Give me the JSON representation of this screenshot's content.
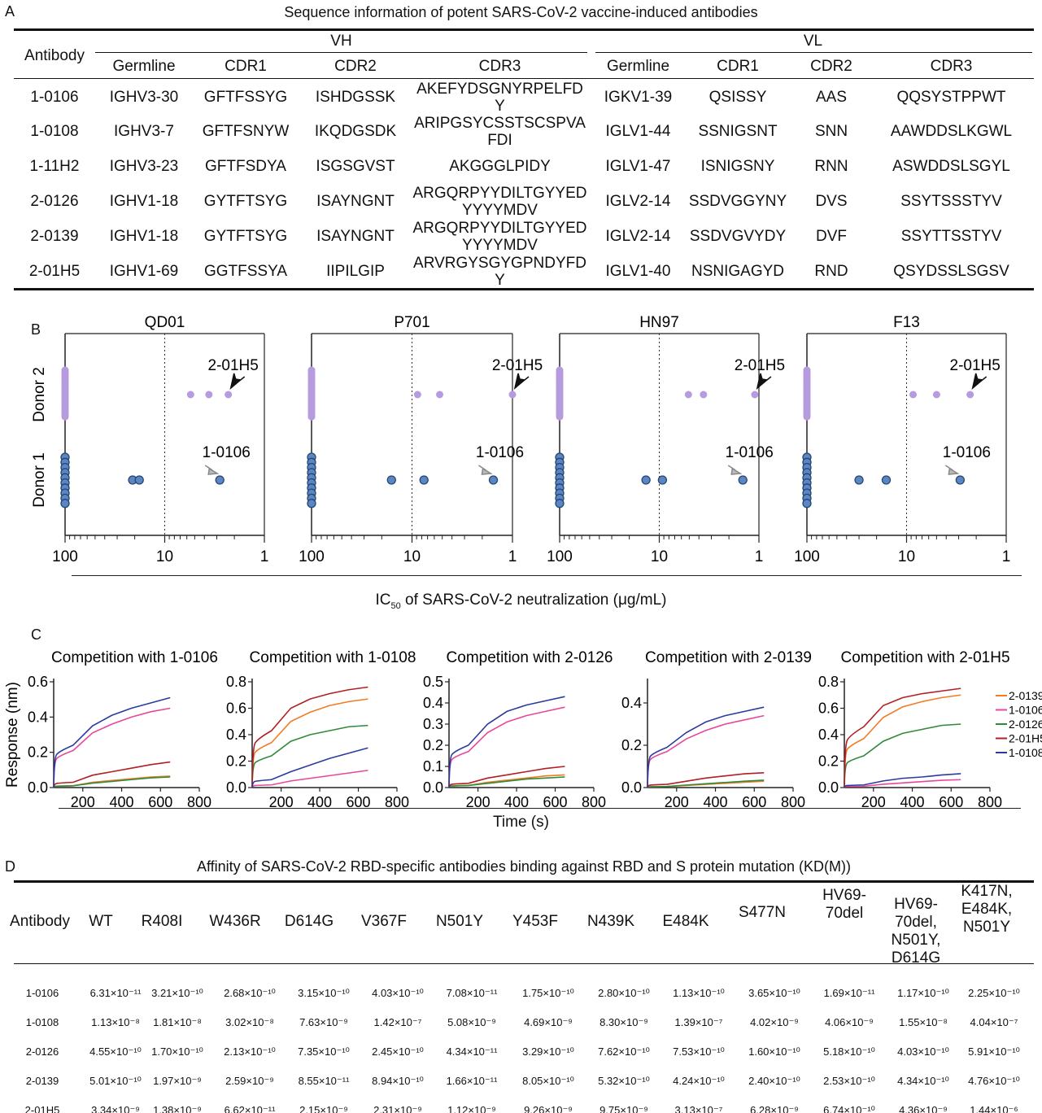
{
  "panelA": {
    "label": "A",
    "title": "Sequence information of potent SARS-CoV-2 vaccine-induced antibodies",
    "antibody_header": "Antibody",
    "group_vh": "VH",
    "group_vl": "VL",
    "sub_headers": [
      "Germline",
      "CDR1",
      "CDR2",
      "CDR3",
      "Germline",
      "CDR1",
      "CDR2",
      "CDR3"
    ],
    "rows": [
      [
        "1-0106",
        "IGHV3-30",
        "GFTFSSYG",
        "ISHDGSSK",
        "AKEFYDSGNYRPELFDY",
        "IGKV1-39",
        "QSISSY",
        "AAS",
        "QQSYSTPPWT"
      ],
      [
        "1-0108",
        "IGHV3-7",
        "GFTFSNYW",
        "IKQDGSDK",
        "ARIPGSYCSSTSCSPVAFDI",
        "IGLV1-44",
        "SSNIGSNT",
        "SNN",
        "AAWDDSLKGWL"
      ],
      [
        "1-11H2",
        "IGHV3-23",
        "GFTFSDYA",
        "ISGSGVST",
        "AKGGGLPIDY",
        "IGLV1-47",
        "ISNIGSNY",
        "RNN",
        "ASWDDSLSGYL"
      ],
      [
        "2-0126",
        "IGHV1-18",
        "GYTFTSYG",
        "ISAYNGNT",
        "ARGQRPYYDILTGYYEDYYYYMDV",
        "IGLV2-14",
        "SSDVGGYNY",
        "DVS",
        "SSYTSSSTYV"
      ],
      [
        "2-0139",
        "IGHV1-18",
        "GYTFTSYG",
        "ISAYNGNT",
        "ARGQRPYYDILTGYYEDYYYYMDV",
        "IGLV2-14",
        "SSDVGVYDY",
        "DVF",
        "SSYTTSSTYV"
      ],
      [
        "2-01H5",
        "IGHV1-69",
        "GGTFSSYA",
        "IIPILGIP",
        "ARVRGYSGYGPNDYFDY",
        "IGLV1-40",
        "NSNIGAGYD",
        "RND",
        "QSYDSSLSGSV"
      ]
    ]
  },
  "panelB": {
    "label": "B",
    "y_categories": [
      "Donor 2",
      "Donor 1"
    ],
    "xlabel_main": "IC",
    "xlabel_sub": "50",
    "xlabel_rest": " of SARS-CoV-2 neutralization (μg/mL)",
    "tick_labels": [
      "100",
      "10",
      "1"
    ],
    "donor2_color": "#b69be0",
    "donor1_color": "#5a86c4",
    "arrow2_color": "#111111",
    "arrow1_color": "#888888",
    "plots": [
      {
        "title": "QD01",
        "donor2_label": "2-01H5",
        "donor1_label": "1-0106"
      },
      {
        "title": "P701",
        "donor2_label": "2-01H5",
        "donor1_label": "1-0106"
      },
      {
        "title": "HN97",
        "donor2_label": "2-01H5",
        "donor1_label": "1-0106"
      },
      {
        "title": "F13",
        "donor2_label": "2-01H5",
        "donor1_label": "1-0106"
      }
    ]
  },
  "chart_data": [
    {
      "type": "scatter",
      "title": "QD01",
      "x_scale": "log",
      "x_reversed": true,
      "xlim": [
        100,
        1
      ],
      "threshold_line": 10,
      "series": [
        {
          "name": "Donor 2",
          "non_neutralizing_count": 9,
          "x": [
            5.5,
            3.6,
            2.3
          ]
        },
        {
          "name": "Donor 1",
          "non_neutralizing_count": 10,
          "x": [
            21,
            18,
            2.8
          ]
        }
      ]
    },
    {
      "type": "scatter",
      "title": "P701",
      "x_scale": "log",
      "x_reversed": true,
      "xlim": [
        100,
        1
      ],
      "threshold_line": 10,
      "series": [
        {
          "name": "Donor 2",
          "non_neutralizing_count": 9,
          "x": [
            8.8,
            5.3,
            1.0
          ]
        },
        {
          "name": "Donor 1",
          "non_neutralizing_count": 10,
          "x": [
            16,
            7.6,
            1.55
          ]
        }
      ]
    },
    {
      "type": "scatter",
      "title": "HN97",
      "x_scale": "log",
      "x_reversed": true,
      "xlim": [
        100,
        1
      ],
      "threshold_line": 10,
      "series": [
        {
          "name": "Donor 2",
          "non_neutralizing_count": 9,
          "x": [
            5.1,
            3.6,
            1.1
          ]
        },
        {
          "name": "Donor 1",
          "non_neutralizing_count": 10,
          "x": [
            13.6,
            9.3,
            1.45
          ]
        }
      ]
    },
    {
      "type": "scatter",
      "title": "F13",
      "x_scale": "log",
      "x_reversed": true,
      "xlim": [
        100,
        1
      ],
      "threshold_line": 10,
      "series": [
        {
          "name": "Donor 2",
          "non_neutralizing_count": 9,
          "x": [
            8.6,
            5.0,
            2.3
          ]
        },
        {
          "name": "Donor 1",
          "non_neutralizing_count": 10,
          "x": [
            30,
            16,
            2.9
          ]
        }
      ]
    },
    {
      "type": "line",
      "title": "Competition with 1-0106",
      "ylim": [
        0,
        0.6
      ],
      "yticks": [
        0.0,
        0.2,
        0.4,
        0.6
      ],
      "xlim": [
        50,
        800
      ],
      "series": [
        {
          "name": "2-0139",
          "values": [
            0,
            0.01,
            0.03,
            0.04,
            0.05,
            0.06,
            0.065
          ]
        },
        {
          "name": "1-0106",
          "values": [
            0,
            0.21,
            0.31,
            0.36,
            0.4,
            0.43,
            0.45
          ]
        },
        {
          "name": "2-0126",
          "values": [
            0,
            0.01,
            0.025,
            0.035,
            0.045,
            0.055,
            0.06
          ]
        },
        {
          "name": "2-01H5",
          "values": [
            0,
            0.03,
            0.07,
            0.09,
            0.11,
            0.13,
            0.145
          ]
        },
        {
          "name": "1-0108",
          "values": [
            0,
            0.24,
            0.35,
            0.41,
            0.45,
            0.48,
            0.51
          ]
        }
      ]
    },
    {
      "type": "line",
      "title": "Competition with 1-0108",
      "ylim": [
        0,
        0.8
      ],
      "yticks": [
        0.0,
        0.2,
        0.4,
        0.6,
        0.8
      ],
      "xlim": [
        50,
        800
      ],
      "series": [
        {
          "name": "2-0139",
          "values": [
            0,
            0.34,
            0.5,
            0.57,
            0.62,
            0.65,
            0.67
          ]
        },
        {
          "name": "1-0106",
          "values": [
            0,
            0.02,
            0.05,
            0.07,
            0.09,
            0.11,
            0.13
          ]
        },
        {
          "name": "2-0126",
          "values": [
            0,
            0.24,
            0.35,
            0.4,
            0.43,
            0.46,
            0.47
          ]
        },
        {
          "name": "2-01H5",
          "values": [
            0,
            0.43,
            0.6,
            0.67,
            0.71,
            0.74,
            0.76
          ]
        },
        {
          "name": "1-0108",
          "values": [
            0,
            0.06,
            0.12,
            0.17,
            0.22,
            0.26,
            0.3
          ]
        }
      ]
    },
    {
      "type": "line",
      "title": "Competition with 2-0126",
      "ylim": [
        0,
        0.5
      ],
      "yticks": [
        0.0,
        0.1,
        0.2,
        0.3,
        0.4,
        0.5
      ],
      "xlim": [
        50,
        800
      ],
      "series": [
        {
          "name": "2-0139",
          "values": [
            0,
            0.01,
            0.025,
            0.035,
            0.045,
            0.055,
            0.06
          ]
        },
        {
          "name": "1-0106",
          "values": [
            0,
            0.17,
            0.26,
            0.31,
            0.34,
            0.36,
            0.38
          ]
        },
        {
          "name": "2-0126",
          "values": [
            0,
            0.01,
            0.02,
            0.03,
            0.04,
            0.045,
            0.05
          ]
        },
        {
          "name": "2-01H5",
          "values": [
            0,
            0.02,
            0.045,
            0.06,
            0.075,
            0.09,
            0.1
          ]
        },
        {
          "name": "1-0108",
          "values": [
            0,
            0.2,
            0.3,
            0.36,
            0.39,
            0.41,
            0.43
          ]
        }
      ]
    },
    {
      "type": "line",
      "title": "Competition with 2-0139",
      "ylim": [
        0,
        0.5
      ],
      "yticks": [
        0.0,
        0.2,
        0.4
      ],
      "xlim": [
        50,
        800
      ],
      "series": [
        {
          "name": "2-0139",
          "values": [
            0,
            0.005,
            0.01,
            0.015,
            0.02,
            0.025,
            0.03
          ]
        },
        {
          "name": "1-0106",
          "values": [
            0,
            0.17,
            0.23,
            0.27,
            0.3,
            0.32,
            0.34
          ]
        },
        {
          "name": "2-0126",
          "values": [
            0,
            0.005,
            0.012,
            0.018,
            0.024,
            0.03,
            0.035
          ]
        },
        {
          "name": "2-01H5",
          "values": [
            0,
            0.015,
            0.03,
            0.045,
            0.055,
            0.065,
            0.07
          ]
        },
        {
          "name": "1-0108",
          "values": [
            0,
            0.19,
            0.26,
            0.31,
            0.34,
            0.36,
            0.38
          ]
        }
      ]
    },
    {
      "type": "line",
      "title": "Competition with 2-01H5",
      "ylim": [
        0,
        0.8
      ],
      "yticks": [
        0.0,
        0.2,
        0.4,
        0.6,
        0.8
      ],
      "xlim": [
        50,
        800
      ],
      "series": [
        {
          "name": "2-0139",
          "values": [
            0,
            0.37,
            0.53,
            0.61,
            0.65,
            0.68,
            0.7
          ]
        },
        {
          "name": "1-0106",
          "values": [
            0,
            0.01,
            0.025,
            0.035,
            0.045,
            0.055,
            0.06
          ]
        },
        {
          "name": "2-0126",
          "values": [
            0,
            0.24,
            0.35,
            0.41,
            0.44,
            0.47,
            0.48
          ]
        },
        {
          "name": "2-01H5",
          "values": [
            0,
            0.46,
            0.62,
            0.68,
            0.71,
            0.73,
            0.75
          ]
        },
        {
          "name": "1-0108",
          "values": [
            0,
            0.02,
            0.05,
            0.07,
            0.08,
            0.095,
            0.105
          ]
        }
      ]
    }
  ],
  "panelC": {
    "label": "C",
    "ylabel": "Response (nm)",
    "xlabel": "Time (s)",
    "x_time_points": [
      50,
      150,
      250,
      350,
      450,
      550,
      650
    ],
    "xticks": [
      200,
      400,
      600,
      800
    ],
    "legend": [
      "2-0139",
      "1-0106",
      "2-0126",
      "2-01H5",
      "1-0108"
    ],
    "colors": {
      "2-0139": "#f07c24",
      "1-0106": "#e8479a",
      "2-0126": "#2f8a3a",
      "2-01H5": "#b21f24",
      "1-0108": "#2b3a9e"
    }
  },
  "panelD": {
    "label": "D",
    "title": "Affinity of SARS-CoV-2 RBD-specific antibodies binding against RBD and S protein mutation (KD(M))",
    "headers": [
      "Antibody",
      "WT",
      "R408I",
      "W436R",
      "D614G",
      "V367F",
      "N501Y",
      "Y453F",
      "N439K",
      "E484K",
      "S477N",
      "HV69-70del",
      "HV69-70del, N501Y, D614G",
      "K417N, E484K, N501Y"
    ],
    "rows": [
      [
        "1-0106",
        "6.31×10⁻¹¹",
        "3.21×10⁻¹⁰",
        "2.68×10⁻¹⁰",
        "3.15×10⁻¹⁰",
        "4.03×10⁻¹⁰",
        "7.08×10⁻¹¹",
        "1.75×10⁻¹⁰",
        "2.80×10⁻¹⁰",
        "1.13×10⁻¹⁰",
        "3.65×10⁻¹⁰",
        "1.69×10⁻¹¹",
        "1.17×10⁻¹⁰",
        "2.25×10⁻¹⁰"
      ],
      [
        "1-0108",
        "1.13×10⁻⁸",
        "1.81×10⁻⁸",
        "3.02×10⁻⁸",
        "7.63×10⁻⁹",
        "1.42×10⁻⁷",
        "5.08×10⁻⁹",
        "4.69×10⁻⁹",
        "8.30×10⁻⁹",
        "1.39×10⁻⁷",
        "4.02×10⁻⁹",
        "4.06×10⁻⁹",
        "1.55×10⁻⁸",
        "4.04×10⁻⁷"
      ],
      [
        "2-0126",
        "4.55×10⁻¹⁰",
        "1.70×10⁻¹⁰",
        "2.13×10⁻¹⁰",
        "7.35×10⁻¹⁰",
        "2.45×10⁻¹⁰",
        "4.34×10⁻¹¹",
        "3.29×10⁻¹⁰",
        "7.62×10⁻¹⁰",
        "7.53×10⁻¹⁰",
        "1.60×10⁻¹⁰",
        "5.18×10⁻¹⁰",
        "4.03×10⁻¹⁰",
        "5.91×10⁻¹⁰"
      ],
      [
        "2-0139",
        "5.01×10⁻¹⁰",
        "1.97×10⁻⁹",
        "2.59×10⁻⁹",
        "8.55×10⁻¹¹",
        "8.94×10⁻¹⁰",
        "1.66×10⁻¹¹",
        "8.05×10⁻¹⁰",
        "5.32×10⁻¹⁰",
        "4.24×10⁻¹⁰",
        "2.40×10⁻¹⁰",
        "2.53×10⁻¹⁰",
        "4.34×10⁻¹⁰",
        "4.76×10⁻¹⁰"
      ],
      [
        "2-01H5",
        "3.34×10⁻⁹",
        "1.38×10⁻⁹",
        "6.62×10⁻¹¹",
        "2.15×10⁻⁹",
        "2.31×10⁻⁹",
        "1.12×10⁻⁹",
        "9.26×10⁻⁹",
        "9.75×10⁻⁹",
        "3.13×10⁻⁷",
        "6.28×10⁻⁹",
        "6.74×10⁻¹⁰",
        "4.36×10⁻⁹",
        "1.44×10⁻⁶"
      ]
    ]
  }
}
